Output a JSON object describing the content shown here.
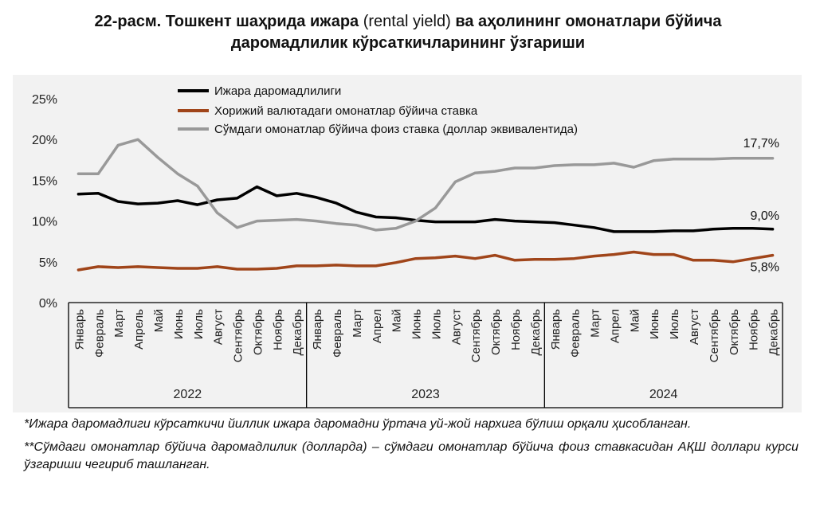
{
  "title": {
    "part1": "22-расм. Тошкент шаҳрида ижара",
    "part2": "(rental yield)",
    "part3": "ва аҳолининг омонатлари бўйича",
    "line2": "даромадлилик кўрсаткичларининг ўзгариши"
  },
  "chart_data": {
    "type": "line",
    "title": "22-расм. Тошкент шаҳрида ижара (rental yield) ва аҳолининг омонатлари бўйича даромадлилик кўрсаткичларининг ўзгариши",
    "ylim": [
      0,
      25
    ],
    "yticks": [
      "0%",
      "5%",
      "10%",
      "15%",
      "20%",
      "25%"
    ],
    "ytick_values": [
      0,
      5,
      10,
      15,
      20,
      25
    ],
    "categories": [
      "Январь",
      "Февраль",
      "Март",
      "Апрель",
      "Май",
      "Июнь",
      "Июль",
      "Август",
      "Сентябрь",
      "Октябрь",
      "Ноябрь",
      "Декабрь",
      "Январь",
      "Февраль",
      "Март",
      "Апрел",
      "Май",
      "Июнь",
      "Июль",
      "Август",
      "Сентябрь",
      "Октябрь",
      "Ноябрь",
      "Декабрь",
      "Январь",
      "Февраль",
      "Март",
      "Апрел",
      "Май",
      "Июнь",
      "Июль",
      "Август",
      "Сентябрь",
      "Октябрь",
      "Ноябрь",
      "Декабрь"
    ],
    "years": [
      "2022",
      "2023",
      "2024"
    ],
    "legend_position": "top-left",
    "series": [
      {
        "name": "Ижара даромадлилиги",
        "color": "#000000",
        "values": [
          13.3,
          13.4,
          12.4,
          12.1,
          12.2,
          12.5,
          12.0,
          12.6,
          12.8,
          14.2,
          13.1,
          13.4,
          12.9,
          12.2,
          11.1,
          10.5,
          10.4,
          10.1,
          9.9,
          9.9,
          9.9,
          10.2,
          10.0,
          9.9,
          9.8,
          9.5,
          9.2,
          8.7,
          8.7,
          8.7,
          8.8,
          8.8,
          9.0,
          9.1,
          9.1,
          9.0
        ],
        "end_label": "9,0%"
      },
      {
        "name": "Хорижий валютадаги омонатлар бўйича ставка",
        "color": "#a0451a",
        "values": [
          4.0,
          4.4,
          4.3,
          4.4,
          4.3,
          4.2,
          4.2,
          4.4,
          4.1,
          4.1,
          4.2,
          4.5,
          4.5,
          4.6,
          4.5,
          4.5,
          4.9,
          5.4,
          5.5,
          5.7,
          5.4,
          5.8,
          5.2,
          5.3,
          5.3,
          5.4,
          5.7,
          5.9,
          6.2,
          5.9,
          5.9,
          5.2,
          5.2,
          5.0,
          5.4,
          5.8
        ],
        "end_label": "5,8%"
      },
      {
        "name": "Сўмдаги омонатлар бўйича фоиз ставка (доллар эквивалентида)",
        "color": "#999999",
        "values": [
          15.8,
          15.8,
          19.3,
          20.0,
          17.8,
          15.8,
          14.3,
          11.0,
          9.2,
          10.0,
          10.1,
          10.2,
          10.0,
          9.7,
          9.5,
          8.9,
          9.1,
          10.0,
          11.6,
          14.8,
          15.9,
          16.1,
          16.5,
          16.5,
          16.8,
          16.9,
          16.9,
          17.1,
          16.6,
          17.4,
          17.6,
          17.6,
          17.6,
          17.7,
          17.7,
          17.7
        ],
        "end_label": "17,7%"
      }
    ]
  },
  "notes": {
    "note1": "*Ижара даромадлиги кўрсаткичи йиллик ижара даромадни ўртача уй-жой нархига бўлиш орқали ҳисобланган.",
    "note2": "**Сўмдаги омонатлар бўйича даромадлилик (долларда) – сўмдаги омонатлар бўйича фоиз ставкасидан АҚШ доллари курси ўзгариши чегириб ташланган."
  }
}
